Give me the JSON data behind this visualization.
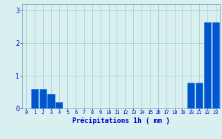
{
  "hours": [
    0,
    1,
    2,
    3,
    4,
    5,
    6,
    7,
    8,
    9,
    10,
    11,
    12,
    13,
    14,
    15,
    16,
    17,
    18,
    19,
    20,
    21,
    22,
    23
  ],
  "values": [
    0.0,
    0.6,
    0.6,
    0.45,
    0.2,
    0.0,
    0.0,
    0.0,
    0.0,
    0.0,
    0.0,
    0.0,
    0.0,
    0.0,
    0.0,
    0.0,
    0.0,
    0.0,
    0.0,
    0.0,
    0.8,
    0.8,
    2.65,
    2.65
  ],
  "bar_color": "#0055cc",
  "bar_edge_color": "#2277ee",
  "background_color": "#d8f0f0",
  "grid_color": "#aacccc",
  "xlabel": "Précipitations 1h ( mm )",
  "xlabel_color": "#0000cc",
  "tick_color": "#0000cc",
  "ylim": [
    0,
    3.2
  ],
  "yticks": [
    0,
    1,
    2,
    3
  ],
  "xlim": [
    -0.5,
    23.5
  ],
  "xlabel_fontsize": 7,
  "tick_fontsize": 5,
  "ytick_fontsize": 7
}
